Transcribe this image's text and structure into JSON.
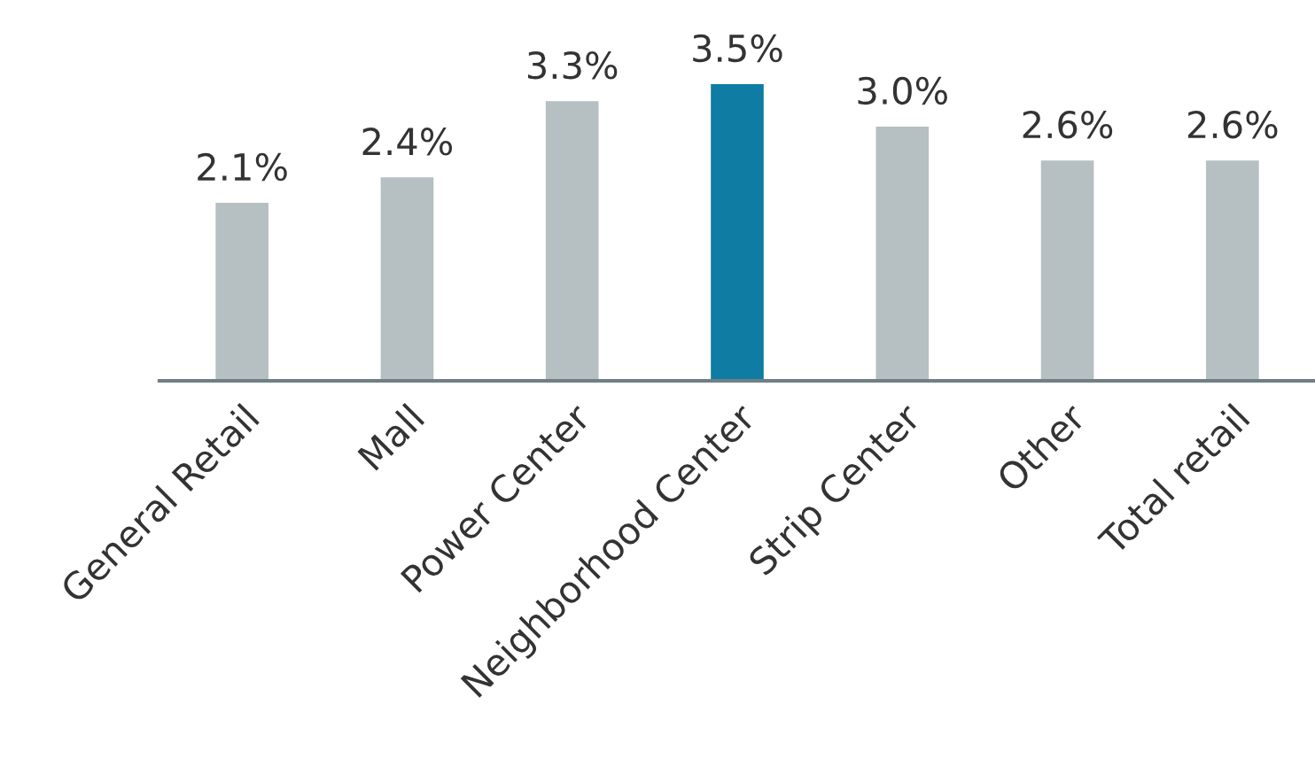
{
  "chart_data": {
    "type": "bar",
    "categories": [
      "General Retail",
      "Mall",
      "Power Center",
      "Neighborhood Center",
      "Strip Center",
      "Other",
      "Total retail"
    ],
    "values": [
      2.1,
      2.4,
      3.3,
      3.5,
      3.0,
      2.6,
      2.6
    ],
    "colors": [
      "#b6bfc1",
      "#b6bfc1",
      "#b6bfc1",
      "#0f7ca3",
      "#b6bfc1",
      "#b6bfc1",
      "#b6bfc1"
    ],
    "value_labels": [
      "2.1%",
      "2.4%",
      "3.3%",
      "3.5%",
      "3.0%",
      "2.6%",
      "2.6%"
    ],
    "tick_labels": "x",
    "grid": false,
    "legend": false
  }
}
